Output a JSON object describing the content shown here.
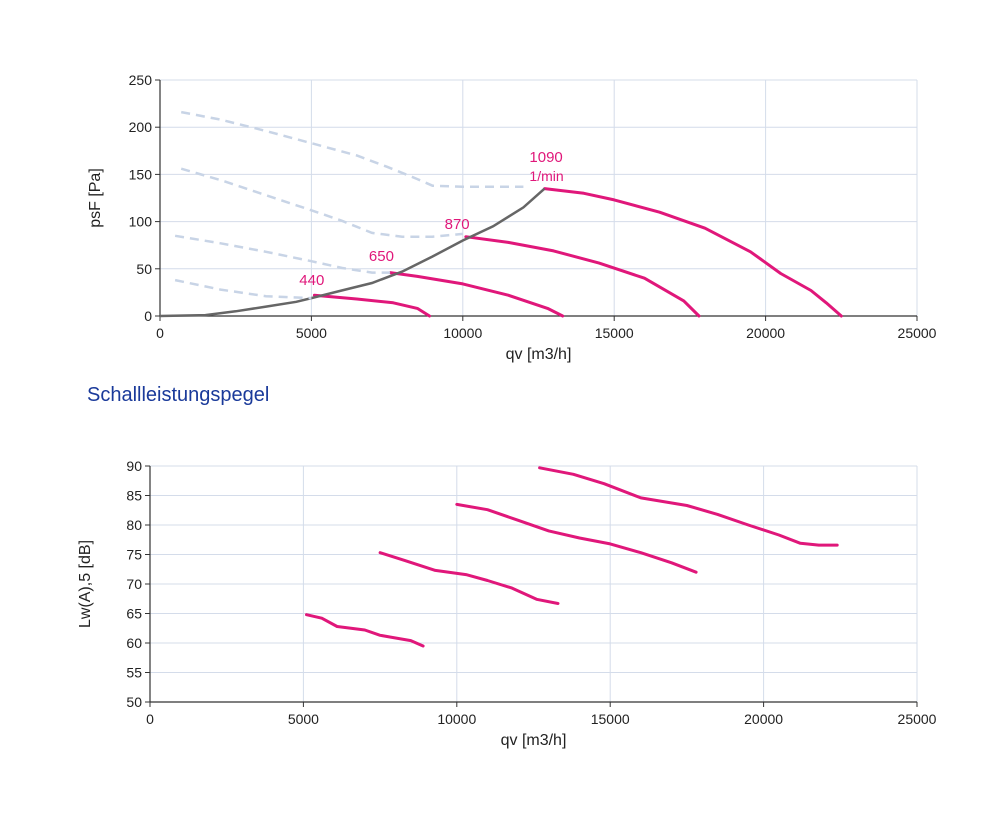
{
  "section_title": "Schallleistungspegel",
  "colors": {
    "curve": "#e0177a",
    "system": "#666666",
    "dashed": "#c8d4e6",
    "grid": "#d4dcea",
    "title": "#1a3a9a"
  },
  "chart_data": [
    {
      "type": "line",
      "xlabel": "qv [m3/h]",
      "ylabel": "psF [Pa]",
      "xlim": [
        0,
        25000
      ],
      "ylim": [
        0,
        250
      ],
      "xticks": [
        0,
        5000,
        10000,
        15000,
        20000,
        25000
      ],
      "yticks": [
        0,
        50,
        100,
        150,
        200,
        250
      ],
      "grid": true,
      "rpm_labels": [
        {
          "text": "440",
          "x": 4600,
          "y": 33
        },
        {
          "text": "650",
          "x": 6900,
          "y": 58
        },
        {
          "text": "870",
          "x": 9400,
          "y": 92
        },
        {
          "text": "1090",
          "x": 12200,
          "y": 163
        },
        {
          "text": "1/min",
          "x": 12200,
          "y": 143
        }
      ],
      "series": [
        {
          "rpm": "440",
          "points": [
            [
              5100,
              22
            ],
            [
              6500,
              18
            ],
            [
              7700,
              14
            ],
            [
              8500,
              8
            ],
            [
              8900,
              0
            ]
          ]
        },
        {
          "rpm": "650",
          "points": [
            [
              7600,
              46
            ],
            [
              8500,
              42
            ],
            [
              10000,
              34
            ],
            [
              11500,
              22
            ],
            [
              12800,
              8
            ],
            [
              13300,
              0
            ]
          ]
        },
        {
          "rpm": "870",
          "points": [
            [
              10100,
              84
            ],
            [
              11500,
              78
            ],
            [
              13000,
              69
            ],
            [
              14500,
              56
            ],
            [
              16000,
              40
            ],
            [
              17300,
              16
            ],
            [
              17800,
              0
            ]
          ]
        },
        {
          "rpm": "1090",
          "points": [
            [
              12700,
              135
            ],
            [
              14000,
              130
            ],
            [
              15000,
              123
            ],
            [
              16500,
              110
            ],
            [
              18000,
              93
            ],
            [
              19500,
              68
            ],
            [
              20500,
              45
            ],
            [
              21500,
              27
            ],
            [
              22000,
              14
            ],
            [
              22500,
              0
            ]
          ]
        },
        {
          "kind": "system",
          "points": [
            [
              0,
              0
            ],
            [
              1500,
              1
            ],
            [
              2500,
              5
            ],
            [
              3500,
              10
            ],
            [
              4500,
              15
            ],
            [
              5000,
              19
            ],
            [
              6000,
              27
            ],
            [
              7000,
              35
            ],
            [
              8000,
              47
            ],
            [
              9000,
              63
            ],
            [
              10000,
              80
            ],
            [
              11000,
              95
            ],
            [
              12000,
              115
            ],
            [
              12700,
              135
            ]
          ]
        },
        {
          "kind": "dashed",
          "points": [
            [
              700,
              216
            ],
            [
              2000,
              208
            ],
            [
              3500,
              196
            ],
            [
              5000,
              183
            ],
            [
              6500,
              170
            ],
            [
              7500,
              158
            ],
            [
              8500,
              145
            ],
            [
              9000,
              138
            ],
            [
              10000,
              137
            ],
            [
              12000,
              137
            ]
          ]
        },
        {
          "kind": "dashed",
          "points": [
            [
              700,
              156
            ],
            [
              2000,
              144
            ],
            [
              3500,
              128
            ],
            [
              5000,
              112
            ],
            [
              6000,
              101
            ],
            [
              7000,
              88
            ],
            [
              8000,
              84
            ],
            [
              9000,
              84
            ],
            [
              10000,
              87
            ]
          ]
        },
        {
          "kind": "dashed",
          "points": [
            [
              500,
              85
            ],
            [
              2000,
              77
            ],
            [
              3500,
              68
            ],
            [
              5000,
              58
            ],
            [
              6000,
              51
            ],
            [
              7000,
              46
            ],
            [
              7600,
              46
            ]
          ]
        },
        {
          "kind": "dashed",
          "points": [
            [
              500,
              38
            ],
            [
              2000,
              28
            ],
            [
              3500,
              21
            ],
            [
              5000,
              19
            ]
          ]
        }
      ]
    },
    {
      "type": "line",
      "xlabel": "qv [m3/h]",
      "ylabel": "Lw(A),5 [dB]",
      "xlim": [
        0,
        25000
      ],
      "ylim": [
        50,
        90
      ],
      "xticks": [
        0,
        5000,
        10000,
        15000,
        20000,
        25000
      ],
      "yticks": [
        50,
        55,
        60,
        65,
        70,
        75,
        80,
        85,
        90
      ],
      "grid": true,
      "series": [
        {
          "rpm": "440",
          "points": [
            [
              5100,
              64.8
            ],
            [
              5600,
              64.2
            ],
            [
              6100,
              62.8
            ],
            [
              7000,
              62.2
            ],
            [
              7500,
              61.3
            ],
            [
              8500,
              60.4
            ],
            [
              8900,
              59.5
            ]
          ]
        },
        {
          "rpm": "650",
          "points": [
            [
              7500,
              75.3
            ],
            [
              8300,
              74.0
            ],
            [
              9300,
              72.3
            ],
            [
              10300,
              71.6
            ],
            [
              11000,
              70.6
            ],
            [
              11800,
              69.3
            ],
            [
              12600,
              67.4
            ],
            [
              13300,
              66.7
            ]
          ]
        },
        {
          "rpm": "870",
          "points": [
            [
              10000,
              83.5
            ],
            [
              11000,
              82.6
            ],
            [
              12000,
              80.8
            ],
            [
              13000,
              79.0
            ],
            [
              14000,
              77.8
            ],
            [
              15000,
              76.8
            ],
            [
              16000,
              75.3
            ],
            [
              17000,
              73.6
            ],
            [
              17800,
              72.0
            ]
          ]
        },
        {
          "rpm": "1090",
          "points": [
            [
              12700,
              89.7
            ],
            [
              13800,
              88.6
            ],
            [
              14800,
              87.0
            ],
            [
              16000,
              84.6
            ],
            [
              17500,
              83.3
            ],
            [
              18500,
              81.8
            ],
            [
              19500,
              80.0
            ],
            [
              20500,
              78.3
            ],
            [
              21200,
              76.9
            ],
            [
              21800,
              76.6
            ],
            [
              22400,
              76.6
            ]
          ]
        }
      ]
    }
  ]
}
